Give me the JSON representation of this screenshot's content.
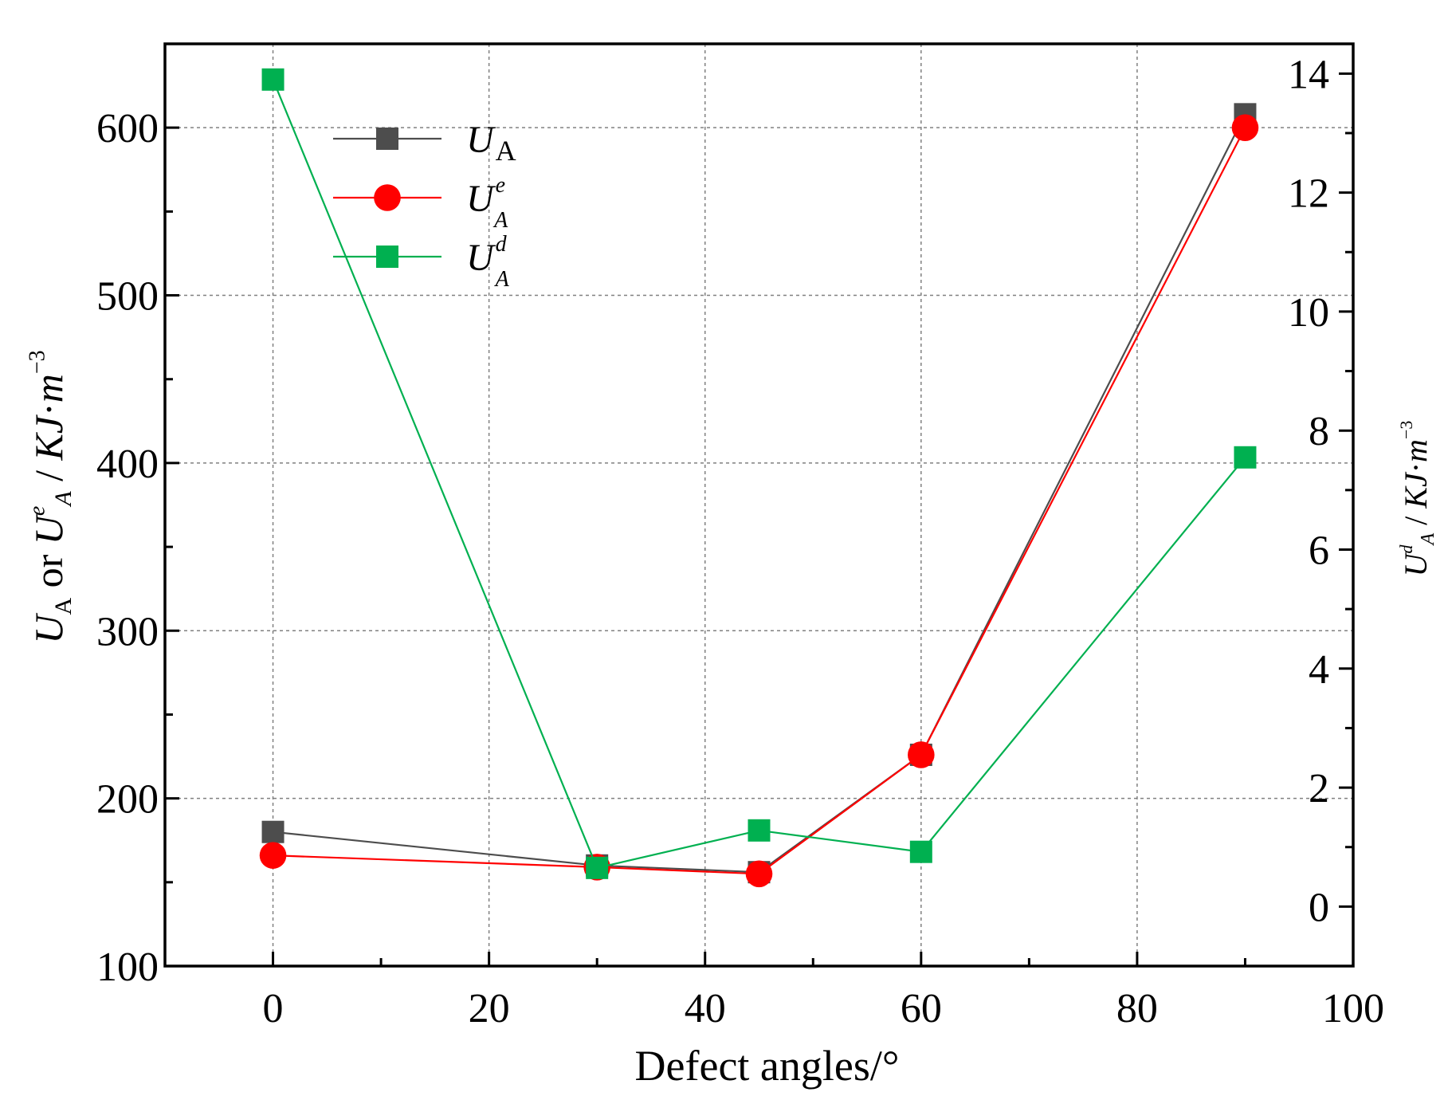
{
  "chart_data": {
    "type": "line",
    "title": "",
    "xlabel": "Defect angles/°",
    "ylabel_left": {
      "parts": [
        {
          "text": "U",
          "italic": true
        },
        {
          "text": "A",
          "sub": true
        },
        {
          "text": " or "
        },
        {
          "text": "U",
          "italic": true
        },
        {
          "text": "e",
          "sup": true,
          "italic": true
        },
        {
          "text": "A",
          "sub": true,
          "italic": true
        },
        {
          "text": " / "
        },
        {
          "text": "KJ",
          "italic": true
        },
        {
          "text": "·"
        },
        {
          "text": "m",
          "italic": true
        },
        {
          "text": "−3",
          "sup": true
        }
      ]
    },
    "ylabel_right": {
      "parts": [
        {
          "text": "U",
          "italic": true
        },
        {
          "text": "d",
          "sup": true,
          "italic": true
        },
        {
          "text": "A",
          "sub": true,
          "italic": true
        },
        {
          "text": " / "
        },
        {
          "text": "KJ",
          "italic": true
        },
        {
          "text": "·"
        },
        {
          "text": "m",
          "italic": true
        },
        {
          "text": "−3",
          "sup": true
        }
      ]
    },
    "xlim": [
      -10,
      100
    ],
    "ylim_left": [
      100,
      650
    ],
    "ylim_right": [
      -1,
      14.5
    ],
    "x_ticks": [
      0,
      20,
      40,
      60,
      80,
      100
    ],
    "y_left_ticks": [
      100,
      200,
      300,
      400,
      500,
      600
    ],
    "y_right_ticks": [
      0,
      2,
      4,
      6,
      8,
      10,
      12,
      14
    ],
    "grid": true,
    "legend_position": "top-left",
    "series": [
      {
        "name": "U_A",
        "axis": "left",
        "marker": "square",
        "color": "#4d4d4d",
        "legend_main": "U",
        "legend_sub": "A",
        "legend_sup": "",
        "x": [
          0,
          30,
          45,
          60,
          90
        ],
        "y": [
          180,
          160,
          156,
          226,
          608
        ]
      },
      {
        "name": "U_A^e",
        "axis": "left",
        "marker": "circle",
        "color": "#ff0000",
        "legend_main": "U",
        "legend_sub": "A",
        "legend_sup": "e",
        "x": [
          0,
          30,
          45,
          60,
          90
        ],
        "y": [
          166,
          159,
          155,
          226,
          600
        ]
      },
      {
        "name": "U_A^d",
        "axis": "right",
        "marker": "square",
        "color": "#00b050",
        "legend_main": "U",
        "legend_sub": "A",
        "legend_sup": "d",
        "x": [
          0,
          30,
          45,
          60,
          90
        ],
        "y": [
          13.9,
          0.65,
          1.28,
          0.92,
          7.55
        ]
      }
    ]
  }
}
